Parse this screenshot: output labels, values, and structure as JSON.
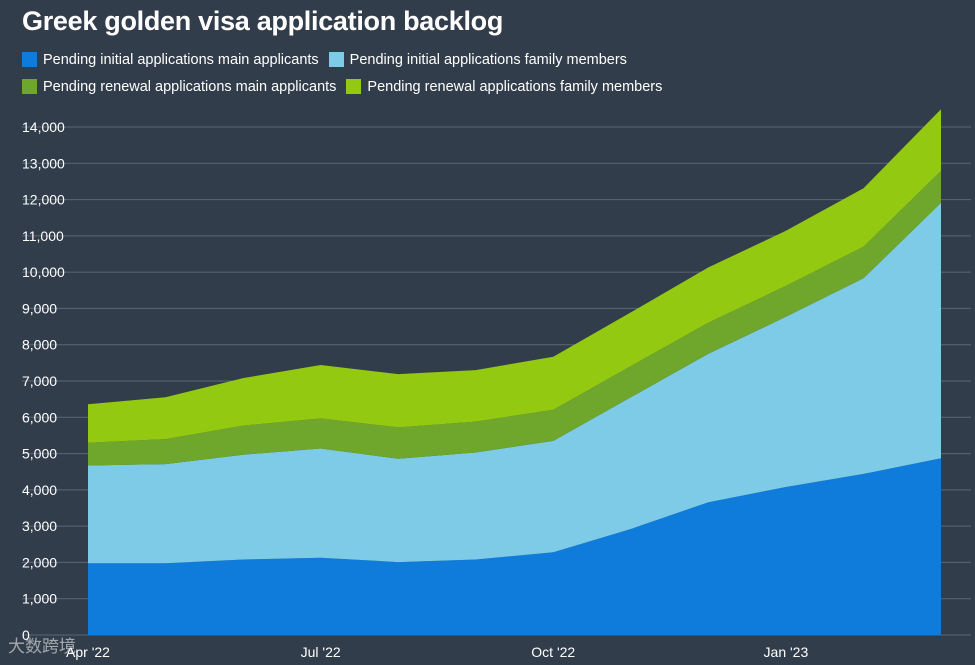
{
  "chart_data": {
    "type": "area",
    "stacked": true,
    "title": "Greek golden visa application backlog",
    "xlabel": "",
    "ylabel": "",
    "ylim": [
      0,
      14000
    ],
    "yticks": [
      0,
      1000,
      2000,
      3000,
      4000,
      5000,
      6000,
      7000,
      8000,
      9000,
      10000,
      11000,
      12000,
      13000,
      14000
    ],
    "ytick_labels": [
      "0",
      "1,000",
      "2,000",
      "3,000",
      "4,000",
      "5,000",
      "6,000",
      "7,000",
      "8,000",
      "9,000",
      "10,000",
      "11,000",
      "12,000",
      "13,000",
      "14,000"
    ],
    "x": [
      "2022-04",
      "2022-05",
      "2022-06",
      "2022-07",
      "2022-08",
      "2022-09",
      "2022-10",
      "2022-11",
      "2022-12",
      "2023-01",
      "2023-02",
      "2023-03"
    ],
    "xtick_labels": [
      {
        "x": "2022-04",
        "label": "Apr '22"
      },
      {
        "x": "2022-07",
        "label": "Jul '22"
      },
      {
        "x": "2022-10",
        "label": "Oct '22"
      },
      {
        "x": "2023-01",
        "label": "Jan '23"
      }
    ],
    "grid": true,
    "legend_position": "top-left",
    "series": [
      {
        "name": "Pending initial applications main applicants",
        "color": "#0f7cdb",
        "values": [
          1980,
          1980,
          2080,
          2130,
          2010,
          2080,
          2280,
          2920,
          3660,
          4080,
          4440,
          4870
        ]
      },
      {
        "name": "Pending initial applications family members",
        "color": "#7ecbe8",
        "values": [
          2690,
          2730,
          2890,
          3010,
          2850,
          2950,
          3070,
          3630,
          4090,
          4690,
          5390,
          7040
        ]
      },
      {
        "name": "Pending renewal applications main applicants",
        "color": "#6fa72c",
        "values": [
          630,
          690,
          800,
          830,
          860,
          850,
          860,
          860,
          860,
          850,
          870,
          880
        ]
      },
      {
        "name": "Pending renewal applications family members",
        "color": "#94c912",
        "values": [
          1060,
          1150,
          1310,
          1470,
          1470,
          1420,
          1460,
          1480,
          1520,
          1520,
          1610,
          1700
        ]
      }
    ]
  },
  "watermark": "大数跨境"
}
